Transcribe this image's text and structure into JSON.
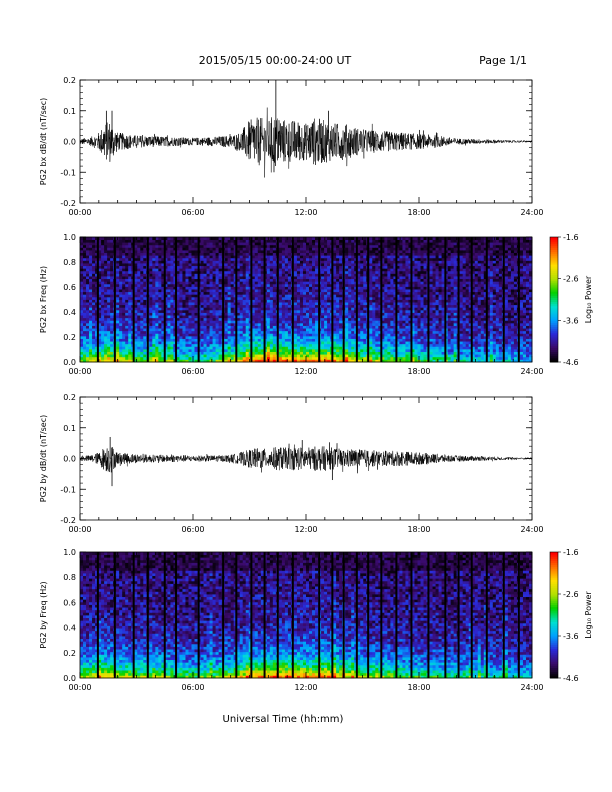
{
  "header": {
    "title": "2015/05/15  00:00-24:00 UT",
    "page": "Page 1/1"
  },
  "xaxis": {
    "label": "Universal Time (hh:mm)",
    "range": [
      0,
      24
    ],
    "ticks": [
      "00:00",
      "06:00",
      "12:00",
      "18:00",
      "24:00"
    ]
  },
  "colorbar": {
    "label": "Log₁₀ Power",
    "range": [
      -4.6,
      -1.6
    ],
    "ticks": [
      "-1.6",
      "-2.6",
      "-3.6",
      "-4.6"
    ],
    "colors": [
      "#000000",
      "#3b0a6b",
      "#2a2ad8",
      "#00a0ff",
      "#00e0d0",
      "#00d000",
      "#b0e000",
      "#ffe000",
      "#ff7000",
      "#ff0000"
    ]
  },
  "chart_data": [
    {
      "type": "line",
      "id": "bx_wave",
      "ylabel": "PG2 bx dB/dt (nT/sec)",
      "ylim": [
        -0.2,
        0.2
      ],
      "yticks": [
        "0.2",
        "0.1",
        "0.0",
        "-0.1",
        "-0.2"
      ],
      "grid": false,
      "envelope": {
        "x": [
          0,
          0.5,
          1.0,
          1.3,
          1.6,
          2.0,
          3.0,
          4.0,
          5.0,
          6.0,
          7.0,
          8.0,
          8.5,
          9.0,
          9.5,
          10.0,
          10.3,
          10.6,
          11.0,
          11.5,
          12.0,
          12.5,
          13.0,
          13.5,
          14.0,
          15.0,
          16.0,
          17.0,
          18.0,
          19.0,
          20.0,
          21.0,
          22.0,
          23.0,
          24.0
        ],
        "amplitude": [
          0.01,
          0.012,
          0.03,
          0.06,
          0.07,
          0.03,
          0.02,
          0.018,
          0.015,
          0.012,
          0.015,
          0.02,
          0.03,
          0.07,
          0.08,
          0.07,
          0.09,
          0.08,
          0.07,
          0.07,
          0.06,
          0.08,
          0.07,
          0.06,
          0.06,
          0.04,
          0.035,
          0.03,
          0.025,
          0.02,
          0.01,
          0.008,
          0.006,
          0.004,
          0.003
        ]
      },
      "spikes": [
        {
          "x": 1.4,
          "y": 0.1
        },
        {
          "x": 1.7,
          "y": 0.1
        },
        {
          "x": 10.4,
          "y": 0.2
        },
        {
          "x": 10.3,
          "y": -0.1
        },
        {
          "x": 13.2,
          "y": 0.1
        }
      ]
    },
    {
      "type": "heatmap",
      "id": "bx_spec",
      "ylabel": "PG2 bx Freq (Hz)",
      "ylim": [
        0.0,
        1.0
      ],
      "yticks": [
        "1.0",
        "0.8",
        "0.6",
        "0.4",
        "0.2",
        "0.0"
      ],
      "zlim": [
        -4.6,
        -1.6
      ],
      "data_gaps": [
        0.95,
        1.85,
        2.85,
        3.6,
        4.5,
        5.1,
        6.3,
        7.6,
        8.3,
        9.1,
        9.8,
        10.5,
        11.3,
        12.7,
        13.4,
        14.0,
        14.7,
        15.3,
        16.0,
        16.8,
        17.6,
        18.5,
        19.4,
        20.1,
        20.8,
        21.6,
        22.5,
        23.3
      ],
      "activity": {
        "x": [
          0,
          1.0,
          1.5,
          2.0,
          3.0,
          4.0,
          5.0,
          6.0,
          7.0,
          8.0,
          9.0,
          10.0,
          11.0,
          12.0,
          13.0,
          14.0,
          15.0,
          16.0,
          17.0,
          18.0,
          20.0,
          22.0,
          24.0
        ],
        "level": [
          0.5,
          0.6,
          0.75,
          0.6,
          0.5,
          0.55,
          0.45,
          0.4,
          0.45,
          0.55,
          0.75,
          0.85,
          0.8,
          0.75,
          0.8,
          0.7,
          0.6,
          0.55,
          0.5,
          0.45,
          0.35,
          0.3,
          0.25
        ]
      }
    },
    {
      "type": "line",
      "id": "by_wave",
      "ylabel": "PG2 by dB/dt (nT/sec)",
      "ylim": [
        -0.2,
        0.2
      ],
      "yticks": [
        "0.2",
        "0.1",
        "0.0",
        "-0.1",
        "-0.2"
      ],
      "grid": false,
      "envelope": {
        "x": [
          0,
          0.5,
          1.0,
          1.3,
          1.6,
          2.0,
          3.0,
          4.0,
          5.0,
          6.0,
          7.0,
          8.0,
          8.5,
          9.0,
          9.5,
          10.0,
          10.5,
          11.0,
          11.5,
          12.0,
          12.5,
          13.0,
          13.5,
          14.0,
          15.0,
          16.0,
          17.0,
          18.0,
          19.0,
          20.0,
          21.0,
          22.0,
          23.0,
          24.0
        ],
        "amplitude": [
          0.008,
          0.01,
          0.02,
          0.04,
          0.05,
          0.02,
          0.015,
          0.012,
          0.012,
          0.01,
          0.01,
          0.012,
          0.02,
          0.03,
          0.035,
          0.03,
          0.04,
          0.035,
          0.04,
          0.035,
          0.04,
          0.04,
          0.035,
          0.03,
          0.03,
          0.025,
          0.025,
          0.02,
          0.015,
          0.01,
          0.008,
          0.006,
          0.004,
          0.003
        ]
      },
      "spikes": [
        {
          "x": 1.6,
          "y": 0.07
        },
        {
          "x": 1.7,
          "y": -0.09
        },
        {
          "x": 11.8,
          "y": 0.06
        },
        {
          "x": 13.4,
          "y": -0.07
        }
      ]
    },
    {
      "type": "heatmap",
      "id": "by_spec",
      "ylabel": "PG2 by Freq (Hz)",
      "ylim": [
        0.0,
        1.0
      ],
      "yticks": [
        "1.0",
        "0.8",
        "0.6",
        "0.4",
        "0.2",
        "0.0"
      ],
      "zlim": [
        -4.6,
        -1.6
      ],
      "data_gaps": [
        0.95,
        1.85,
        2.85,
        3.6,
        4.5,
        5.1,
        6.3,
        7.6,
        8.3,
        9.1,
        9.8,
        10.5,
        11.3,
        12.7,
        13.4,
        14.0,
        14.7,
        15.3,
        16.0,
        16.8,
        17.6,
        18.5,
        19.4,
        20.1,
        20.8,
        21.6,
        22.5,
        23.3
      ],
      "activity": {
        "x": [
          0,
          1.0,
          1.5,
          2.0,
          3.0,
          4.0,
          5.0,
          6.0,
          7.0,
          8.0,
          9.0,
          10.0,
          11.0,
          12.0,
          13.0,
          14.0,
          15.0,
          16.0,
          17.0,
          18.0,
          20.0,
          22.0,
          24.0
        ],
        "level": [
          0.55,
          0.65,
          0.7,
          0.6,
          0.55,
          0.6,
          0.5,
          0.45,
          0.5,
          0.6,
          0.7,
          0.8,
          0.8,
          0.75,
          0.8,
          0.65,
          0.6,
          0.55,
          0.5,
          0.45,
          0.4,
          0.35,
          0.3
        ]
      }
    }
  ]
}
